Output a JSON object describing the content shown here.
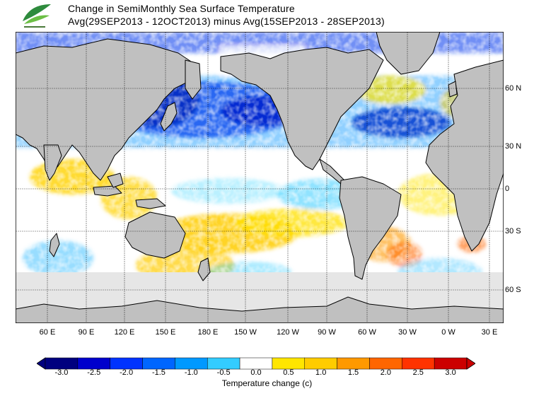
{
  "header": {
    "title_line1": "Change in SemiMonthly Sea Surface Temperature",
    "title_line2": "Avg(29SEP2013 - 12OCT2013) minus Avg(15SEP2013 - 28SEP2013)",
    "logo_icon": "leaf-logo-icon",
    "logo_colors": [
      "#2e8b3d",
      "#6cbf45"
    ]
  },
  "map": {
    "projection": "equirectangular",
    "lon_range": [
      "30 E",
      "50 E"
    ],
    "lat_range": [
      "70 S",
      "90 N"
    ],
    "land_color": "#c0c0c0",
    "ice_color": "#e6e6e6",
    "gridlines": true,
    "x_ticks": [
      "60 E",
      "90 E",
      "120 E",
      "150 E",
      "180 E",
      "150 W",
      "120 W",
      "90 W",
      "60 W",
      "30 W",
      "0 W",
      "30 E"
    ],
    "y_ticks": [
      "60 N",
      "30 N",
      "0",
      "30 S",
      "60 S"
    ]
  },
  "colorbar": {
    "tick_labels": [
      "-3.0",
      "-2.5",
      "-2.0",
      "-1.5",
      "-1.0",
      "-0.5",
      "0.0",
      "0.5",
      "1.0",
      "1.5",
      "2.0",
      "2.5",
      "3.0"
    ],
    "colors": [
      "#00007f",
      "#0000cc",
      "#0033ff",
      "#0066ff",
      "#0099ff",
      "#33ccff",
      "#ffffff",
      "#ffe600",
      "#ffcc00",
      "#ff9900",
      "#ff6600",
      "#ff3300",
      "#cc0000"
    ],
    "label": "Temperature change  (c)"
  }
}
